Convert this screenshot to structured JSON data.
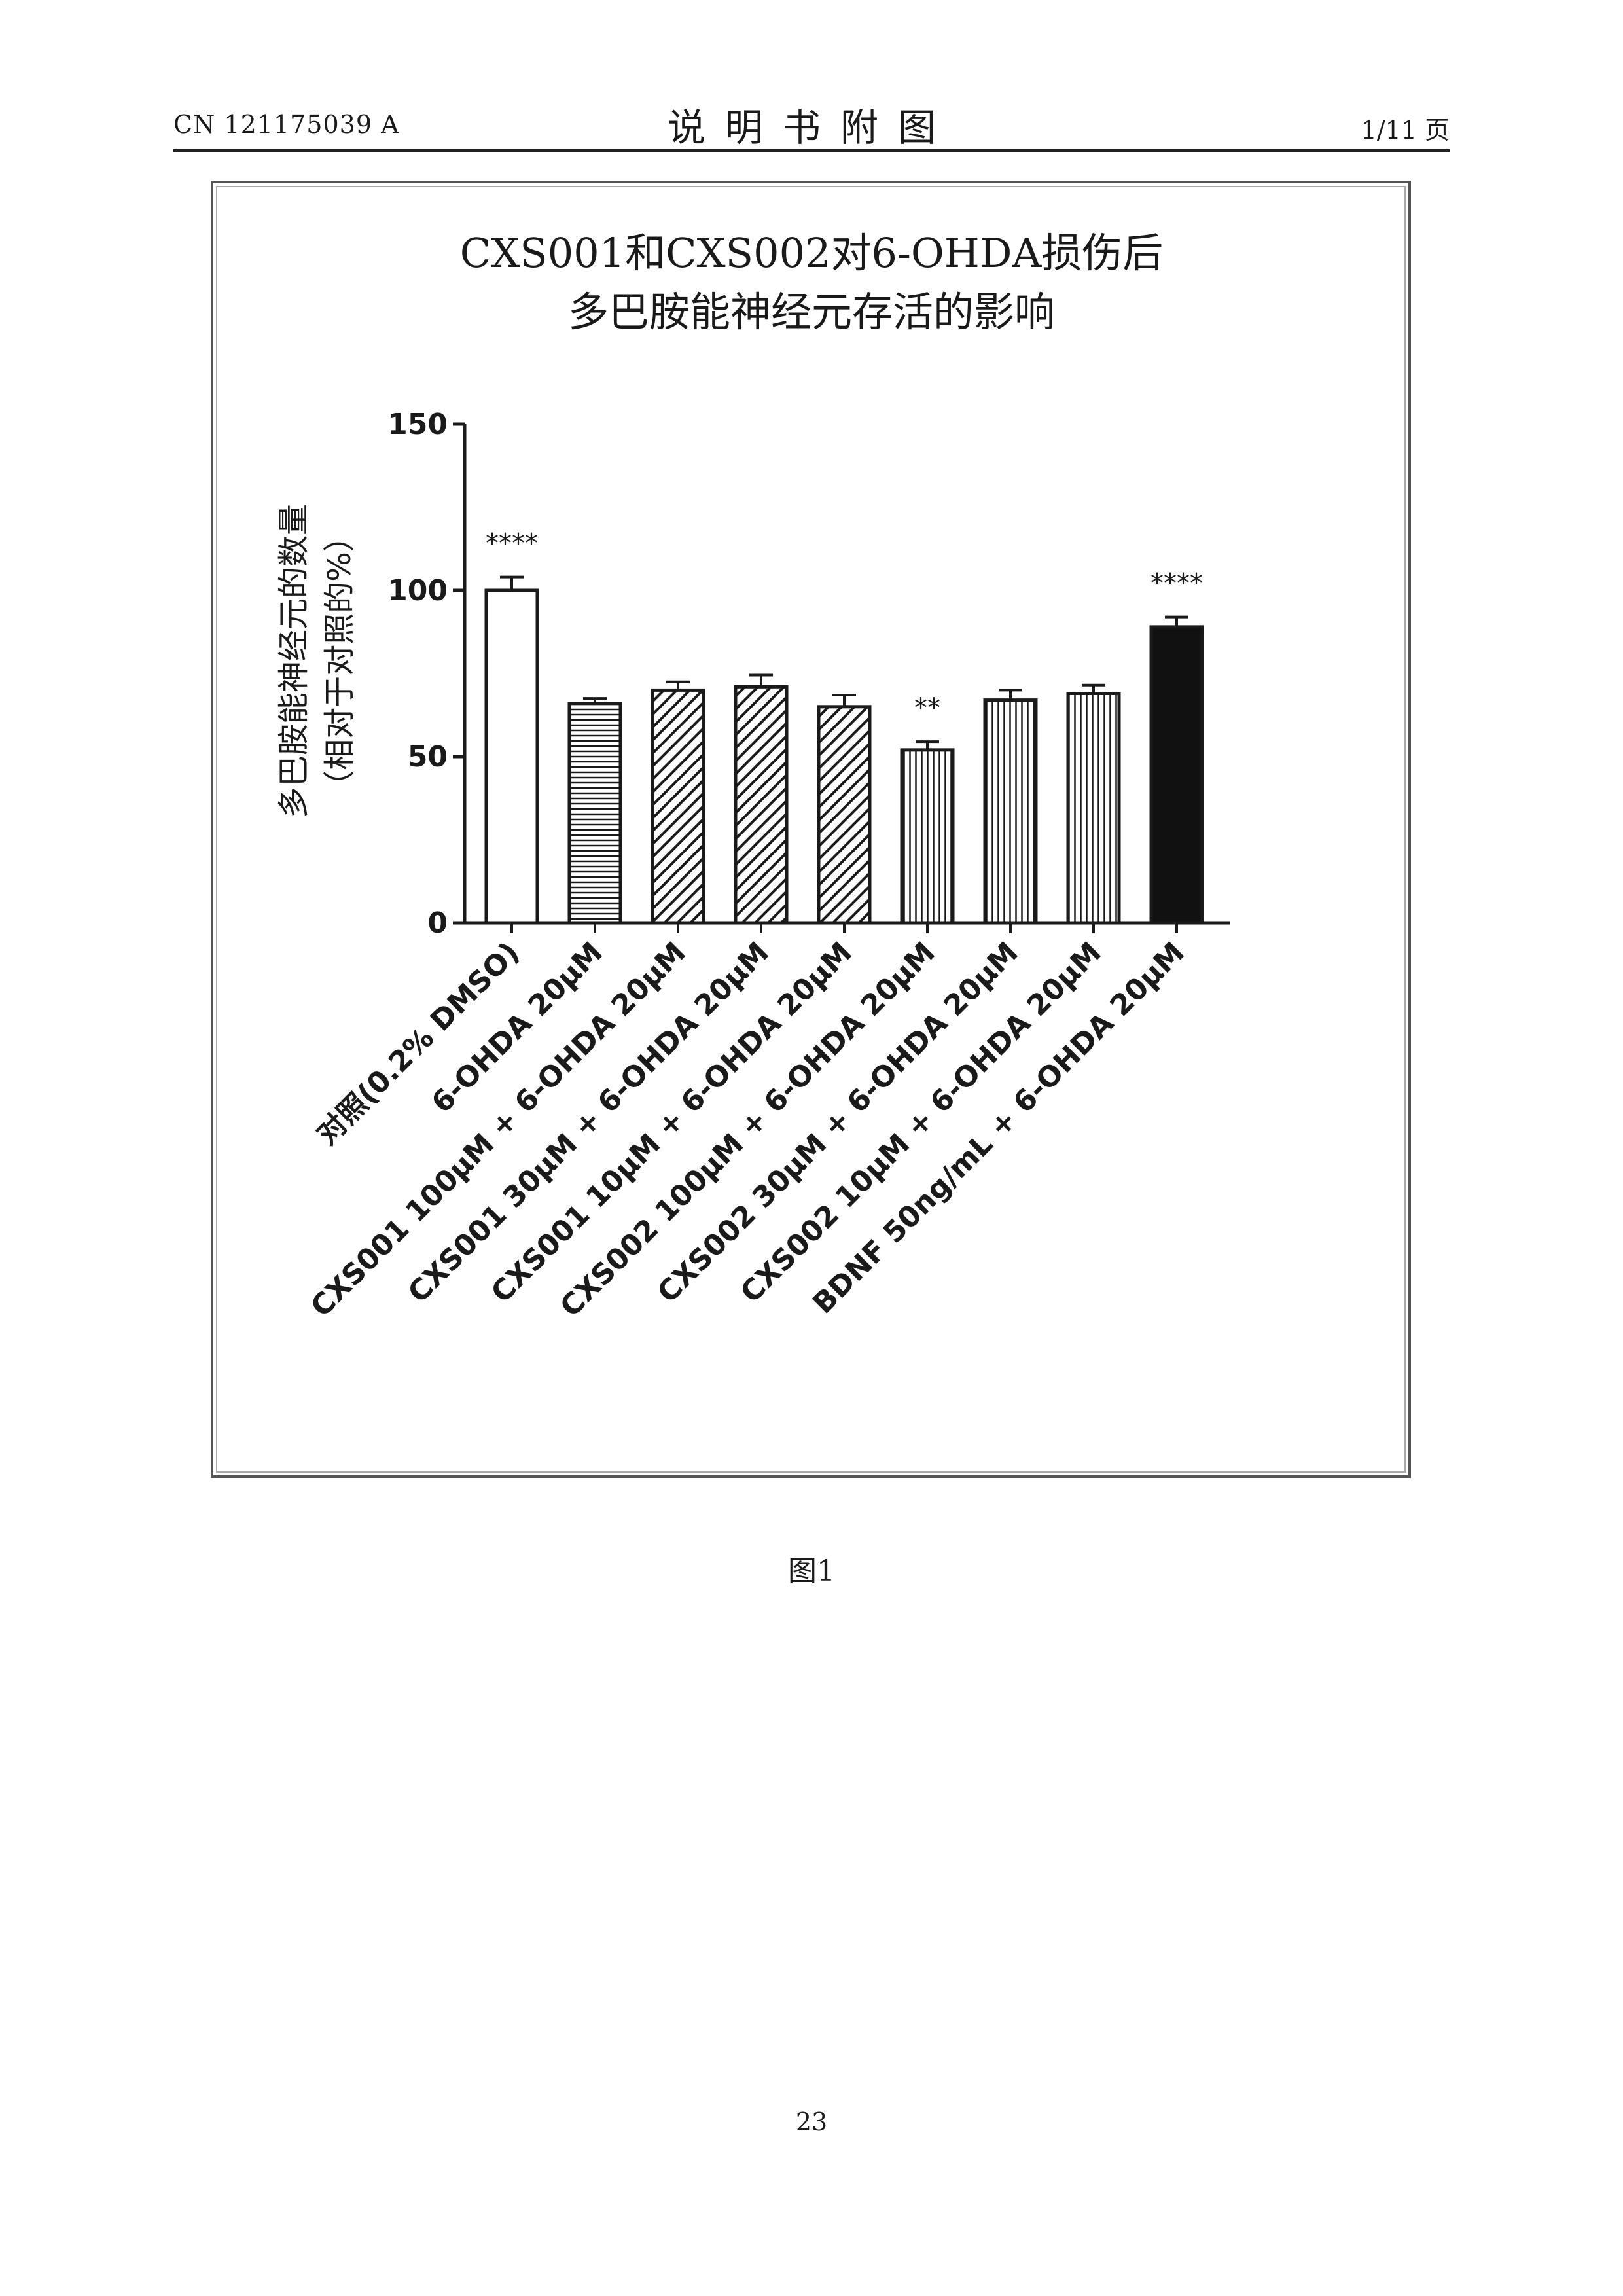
{
  "header": {
    "doc_number": "CN 121175039 A",
    "section_title": "说明书附图",
    "page_count": "1/11 页"
  },
  "figure": {
    "caption": "图1"
  },
  "footer": {
    "page_number": "23"
  },
  "colors": {
    "ink": "#1a1a1a",
    "bar_fill": "#ffffff",
    "bar_dark": "#111111"
  },
  "chart_data": {
    "type": "bar",
    "title": [
      "CXS001和CXS002对6-OHDA损伤后",
      "多巴胺能神经元存活的影响"
    ],
    "ylabel": [
      "多巴胺能神经元的数量",
      "（相对于对照的%）"
    ],
    "ylim": [
      0,
      150
    ],
    "yticks": [
      0,
      50,
      100,
      150
    ],
    "categories": [
      "对照(0.2% DMSO)",
      "6-OHDA 20μM",
      "CXS001 100μM + 6-OHDA 20μM",
      "CXS001 30μM + 6-OHDA 20μM",
      "CXS001 10μM + 6-OHDA 20μM",
      "CXS002 100μM + 6-OHDA 20μM",
      "CXS002 30μM + 6-OHDA 20μM",
      "CXS002 10μM + 6-OHDA 20μM",
      "BDNF 50ng/mL + 6-OHDA 20μM"
    ],
    "values": [
      100,
      66,
      70,
      71,
      65,
      52,
      67,
      69,
      89
    ],
    "errors": [
      4,
      1.5,
      2.5,
      3.5,
      3.5,
      2.5,
      3,
      2.5,
      3
    ],
    "patterns": [
      "open",
      "horizontal",
      "diagonal",
      "diagonal",
      "diagonal",
      "vertical",
      "vertical",
      "vertical",
      "solid"
    ],
    "significance": [
      "****",
      "",
      "",
      "",
      "",
      "**",
      "",
      "",
      "****"
    ],
    "grid": false,
    "legend": "none"
  }
}
